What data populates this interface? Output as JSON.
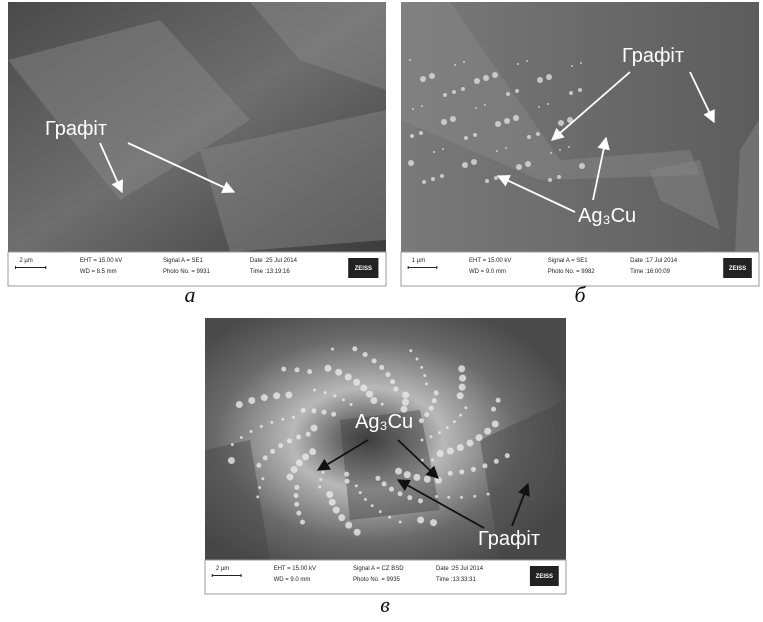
{
  "panels": [
    {
      "label": "а",
      "scale_bar": "2 µm",
      "eht": "EHT = 15.00 kV",
      "wd": "WD = 8.5 mm",
      "signal": "Signal A = SE1",
      "photo": "Photo No. = 9931",
      "date": "Date :25 Jul 2014",
      "time": "Time :13:19:16",
      "brand": "ZEISS",
      "annotations": [
        "Графіт"
      ]
    },
    {
      "label": "б",
      "scale_bar": "1 µm",
      "eht": "EHT = 15.00 kV",
      "wd": "WD = 9.0 mm",
      "signal": "Signal A = SE1",
      "photo": "Photo No. = 9982",
      "date": "Date :17 Jul 2014",
      "time": "Time :16:00:09",
      "brand": "ZEISS",
      "annotations": [
        "Графіт",
        "Ag₃Cu"
      ]
    },
    {
      "label": "в",
      "scale_bar": "2 µm",
      "eht": "EHT = 15.00 kV",
      "wd": "WD = 9.0 mm",
      "signal": "Signal A = CZ BSD",
      "photo": "Photo No. = 9935",
      "date": "Date :25 Jul 2014",
      "time": "Time :13:33:31",
      "brand": "ZEISS",
      "annotations": [
        "Ag₃Cu",
        "Графіт"
      ]
    }
  ]
}
